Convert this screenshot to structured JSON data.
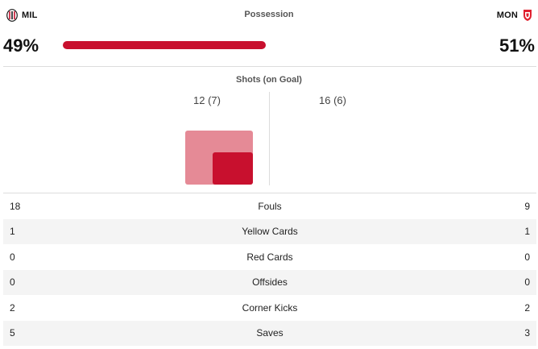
{
  "header": {
    "home_abbr": "MIL",
    "away_abbr": "MON",
    "possession_title": "Possession",
    "home_possession": "49%",
    "away_possession": "51%",
    "home_possession_value": 49,
    "away_possession_value": 51,
    "home_color": "#c8102e"
  },
  "shots": {
    "title": "Shots (on Goal)",
    "home_text": "12 (7)",
    "away_text": "16 (6)",
    "home_total": 12,
    "home_on_goal": 7,
    "away_total": 16,
    "away_on_goal": 6
  },
  "stats": [
    {
      "home": "18",
      "label": "Fouls",
      "away": "9"
    },
    {
      "home": "1",
      "label": "Yellow Cards",
      "away": "1"
    },
    {
      "home": "0",
      "label": "Red Cards",
      "away": "0"
    },
    {
      "home": "0",
      "label": "Offsides",
      "away": "0"
    },
    {
      "home": "2",
      "label": "Corner Kicks",
      "away": "2"
    },
    {
      "home": "5",
      "label": "Saves",
      "away": "3"
    }
  ]
}
